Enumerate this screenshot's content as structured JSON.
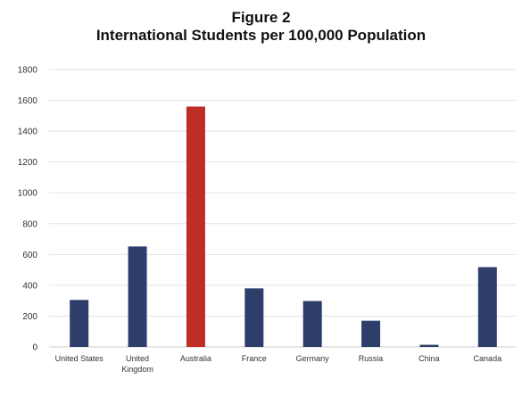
{
  "chart_data": {
    "type": "bar",
    "title": "Figure 2",
    "subtitle": "International Students per 100,000 Population",
    "categories": [
      "United States",
      "United Kingdom",
      "Australia",
      "France",
      "Germany",
      "Russia",
      "China",
      "Canada"
    ],
    "category_label_lines": [
      [
        "United States"
      ],
      [
        "United",
        "Kingdom"
      ],
      [
        "Australia"
      ],
      [
        "France"
      ],
      [
        "Germany"
      ],
      [
        "Russia"
      ],
      [
        "China"
      ],
      [
        "Canada"
      ]
    ],
    "values": [
      305,
      652,
      1560,
      380,
      298,
      170,
      14,
      518
    ],
    "ylim": [
      0,
      1800
    ],
    "yticks": [
      0,
      200,
      400,
      600,
      800,
      1000,
      1200,
      1400,
      1600,
      1800
    ],
    "xlabel": "",
    "ylabel": "",
    "grid": true,
    "legend": "none",
    "colors": {
      "default_bar": "#2e3e6b",
      "highlight_bar": "#bf2e26",
      "grid": "#e3e3e3",
      "axis": "#cfcfcf"
    },
    "highlight_category": "Australia"
  }
}
